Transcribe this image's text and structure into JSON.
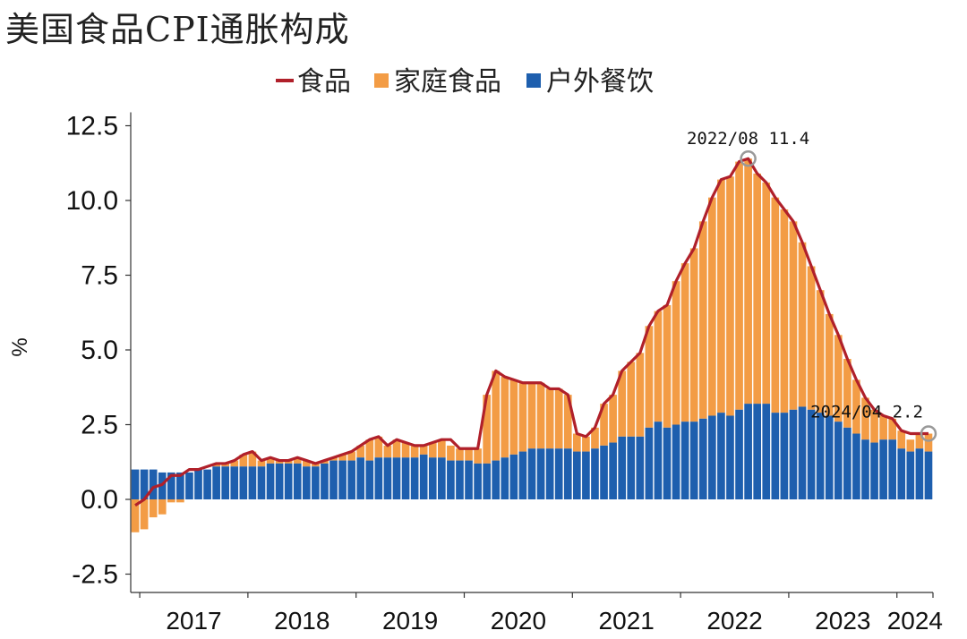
{
  "chart_data": {
    "type": "bar",
    "title": "美国食品CPI通胀构成",
    "ylabel": "%",
    "ylim": [
      -3.5,
      13.0
    ],
    "yticks": [
      -2.5,
      0.0,
      2.5,
      5.0,
      7.5,
      10.0,
      12.5
    ],
    "ytick_labels": [
      "-2.5",
      "0.0",
      "2.5",
      "5.0",
      "7.5",
      "10.0",
      "12.5"
    ],
    "xtick_labels": [
      "2017",
      "2018",
      "2019",
      "2020",
      "2021",
      "2022",
      "2023",
      "2024"
    ],
    "legend": {
      "placement": "top-center",
      "items": [
        {
          "label": "食品",
          "marker": "line",
          "color": "#b0202a"
        },
        {
          "label": "家庭食品",
          "marker": "square",
          "color": "#f39c45"
        },
        {
          "label": "户外餐饮",
          "marker": "square",
          "color": "#1e5fae"
        }
      ]
    },
    "periods": [
      "2016/12",
      "2017/01",
      "2017/02",
      "2017/03",
      "2017/04",
      "2017/05",
      "2017/06",
      "2017/07",
      "2017/08",
      "2017/09",
      "2017/10",
      "2017/11",
      "2017/12",
      "2018/01",
      "2018/02",
      "2018/03",
      "2018/04",
      "2018/05",
      "2018/06",
      "2018/07",
      "2018/08",
      "2018/09",
      "2018/10",
      "2018/11",
      "2018/12",
      "2019/01",
      "2019/02",
      "2019/03",
      "2019/04",
      "2019/05",
      "2019/06",
      "2019/07",
      "2019/08",
      "2019/09",
      "2019/10",
      "2019/11",
      "2019/12",
      "2020/01",
      "2020/02",
      "2020/03",
      "2020/04",
      "2020/05",
      "2020/06",
      "2020/07",
      "2020/08",
      "2020/09",
      "2020/10",
      "2020/11",
      "2020/12",
      "2021/01",
      "2021/02",
      "2021/03",
      "2021/04",
      "2021/05",
      "2021/06",
      "2021/07",
      "2021/08",
      "2021/09",
      "2021/10",
      "2021/11",
      "2021/12",
      "2022/01",
      "2022/02",
      "2022/03",
      "2022/04",
      "2022/05",
      "2022/06",
      "2022/07",
      "2022/08",
      "2022/09",
      "2022/10",
      "2022/11",
      "2022/12",
      "2023/01",
      "2023/02",
      "2023/03",
      "2023/04",
      "2023/05",
      "2023/06",
      "2023/07",
      "2023/08",
      "2023/09",
      "2023/10",
      "2023/11",
      "2023/12",
      "2024/01",
      "2024/02",
      "2024/03",
      "2024/04"
    ],
    "series": [
      {
        "name": "家庭食品",
        "type": "bar",
        "color": "#f39c45",
        "values": [
          -1.1,
          -1.0,
          -0.6,
          -0.5,
          -0.1,
          -0.1,
          0.0,
          0.0,
          0.0,
          0.1,
          0.1,
          0.2,
          0.4,
          0.5,
          0.2,
          0.2,
          0.1,
          0.1,
          0.2,
          0.2,
          0.1,
          0.1,
          0.1,
          0.2,
          0.3,
          0.4,
          0.7,
          0.7,
          0.4,
          0.6,
          0.5,
          0.4,
          0.3,
          0.5,
          0.6,
          0.5,
          0.4,
          0.4,
          0.5,
          2.3,
          3.0,
          2.7,
          2.5,
          2.3,
          2.2,
          2.2,
          2.0,
          2.0,
          1.8,
          0.6,
          0.5,
          0.7,
          1.4,
          1.6,
          2.2,
          2.5,
          2.8,
          3.4,
          3.7,
          4.1,
          4.8,
          5.3,
          5.8,
          6.6,
          7.3,
          7.8,
          8.0,
          8.3,
          8.2,
          7.7,
          7.4,
          7.2,
          6.8,
          6.3,
          5.5,
          4.8,
          4.1,
          3.4,
          2.9,
          2.3,
          1.8,
          1.4,
          1.1,
          0.8,
          0.7,
          0.6,
          0.4,
          0.5,
          0.6
        ]
      },
      {
        "name": "户外餐饮",
        "type": "bar",
        "color": "#1e5fae",
        "values": [
          1.0,
          1.0,
          1.0,
          0.9,
          0.9,
          0.9,
          0.9,
          1.0,
          1.0,
          1.1,
          1.1,
          1.1,
          1.1,
          1.1,
          1.1,
          1.2,
          1.2,
          1.2,
          1.2,
          1.1,
          1.1,
          1.2,
          1.3,
          1.3,
          1.3,
          1.4,
          1.3,
          1.4,
          1.4,
          1.4,
          1.4,
          1.4,
          1.5,
          1.4,
          1.4,
          1.3,
          1.3,
          1.3,
          1.2,
          1.2,
          1.3,
          1.4,
          1.5,
          1.6,
          1.7,
          1.7,
          1.7,
          1.7,
          1.7,
          1.6,
          1.6,
          1.7,
          1.8,
          1.9,
          2.1,
          2.1,
          2.1,
          2.4,
          2.6,
          2.4,
          2.5,
          2.6,
          2.6,
          2.7,
          2.8,
          2.9,
          2.8,
          3.0,
          3.2,
          3.2,
          3.2,
          2.9,
          2.9,
          3.0,
          3.1,
          3.0,
          2.9,
          2.8,
          2.6,
          2.4,
          2.2,
          2.0,
          1.9,
          2.0,
          2.0,
          1.7,
          1.6,
          1.7,
          1.6
        ]
      },
      {
        "name": "食品",
        "type": "line",
        "color": "#b0202a",
        "values": [
          -0.2,
          0.0,
          0.4,
          0.5,
          0.8,
          0.8,
          1.0,
          1.0,
          1.1,
          1.2,
          1.2,
          1.3,
          1.5,
          1.6,
          1.3,
          1.4,
          1.3,
          1.3,
          1.4,
          1.3,
          1.2,
          1.3,
          1.4,
          1.5,
          1.6,
          1.8,
          2.0,
          2.1,
          1.8,
          2.0,
          1.9,
          1.8,
          1.8,
          1.9,
          2.0,
          2.0,
          1.7,
          1.7,
          1.7,
          3.5,
          4.3,
          4.1,
          4.0,
          3.9,
          3.9,
          3.9,
          3.7,
          3.7,
          3.5,
          2.2,
          2.1,
          2.4,
          3.2,
          3.5,
          4.3,
          4.6,
          4.9,
          5.8,
          6.3,
          6.5,
          7.3,
          7.9,
          8.4,
          9.3,
          10.1,
          10.7,
          10.8,
          11.3,
          11.4,
          10.9,
          10.6,
          10.1,
          9.7,
          9.3,
          8.6,
          7.8,
          7.0,
          6.2,
          5.5,
          4.7,
          4.0,
          3.4,
          3.0,
          2.8,
          2.7,
          2.3,
          2.2,
          2.2,
          2.2
        ]
      }
    ],
    "annotations": [
      {
        "period": "2022/08",
        "text": "2022/08  11.4"
      },
      {
        "period": "2024/04",
        "text": "2024/04  2.2"
      }
    ]
  }
}
